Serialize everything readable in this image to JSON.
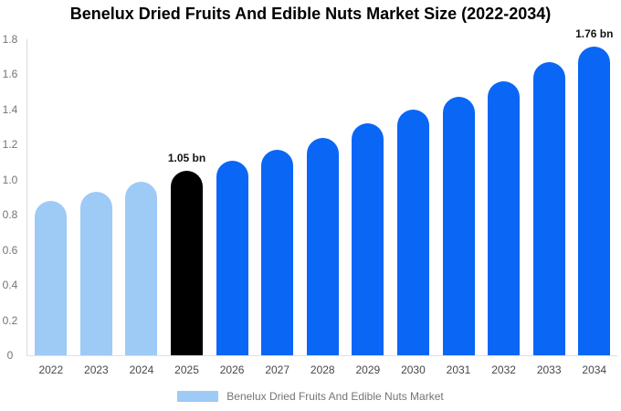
{
  "title": "Benelux Dried Fruits And Edible Nuts Market Size (2022-2034)",
  "chart_data": {
    "type": "bar",
    "categories": [
      "2022",
      "2023",
      "2024",
      "2025",
      "2026",
      "2027",
      "2028",
      "2029",
      "2030",
      "2031",
      "2032",
      "2033",
      "2034"
    ],
    "values": [
      0.88,
      0.93,
      0.99,
      1.05,
      1.11,
      1.17,
      1.24,
      1.32,
      1.4,
      1.47,
      1.56,
      1.67,
      1.76
    ],
    "unit": "bn",
    "ylim": [
      0,
      1.8
    ],
    "ytick_labels": [
      "0",
      "0.2",
      "0.4",
      "0.6",
      "0.8",
      "1.0",
      "1.2",
      "1.4",
      "1.6",
      "1.8"
    ],
    "grid": false,
    "legend": {
      "label": "Benelux Dried Fruits And Edible Nuts Market",
      "position": "bottom"
    },
    "palette": {
      "historical": "#9ECAF6",
      "current": "#000000",
      "forecast": "#0A66F5"
    },
    "bar_groups": [
      "historical",
      "historical",
      "historical",
      "current",
      "forecast",
      "forecast",
      "forecast",
      "forecast",
      "forecast",
      "forecast",
      "forecast",
      "forecast",
      "forecast"
    ],
    "annotations": [
      {
        "category": "2025",
        "text": "1.05 bn"
      },
      {
        "category": "2034",
        "text": "1.76 bn"
      }
    ]
  }
}
